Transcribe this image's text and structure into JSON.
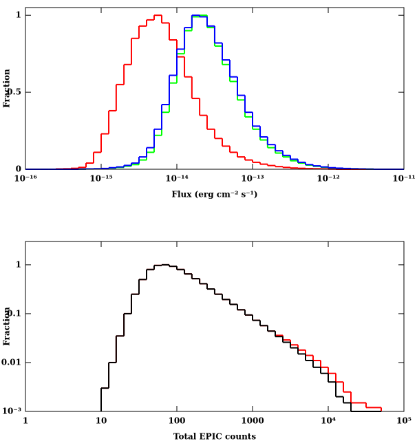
{
  "chart_data": [
    {
      "type": "histogram",
      "xlog": true,
      "ylog": false,
      "xlabel": "Flux (erg cm⁻² s⁻¹)",
      "ylabel": "Fraction",
      "xlim": [
        1e-16,
        1e-11
      ],
      "ylim": [
        0,
        1.05
      ],
      "xticks": [
        {
          "value": 1e-16,
          "label": "10⁻¹⁶"
        },
        {
          "value": 1e-15,
          "label": "10⁻¹⁵"
        },
        {
          "value": 1e-14,
          "label": "10⁻¹⁴"
        },
        {
          "value": 1e-13,
          "label": "10⁻¹³"
        },
        {
          "value": 1e-12,
          "label": "10⁻¹²"
        },
        {
          "value": 1e-11,
          "label": "10⁻¹¹"
        }
      ],
      "yticks": [
        0,
        0.5,
        1
      ],
      "bins": [
        1e-16,
        1.26e-16,
        1.58e-16,
        2e-16,
        2.51e-16,
        3.16e-16,
        3.98e-16,
        5.01e-16,
        6.31e-16,
        7.94e-16,
        1e-15,
        1.26e-15,
        1.58e-15,
        2e-15,
        2.51e-15,
        3.16e-15,
        3.98e-15,
        5.01e-15,
        6.31e-15,
        7.94e-15,
        1e-14,
        1.26e-14,
        1.58e-14,
        2e-14,
        2.51e-14,
        3.16e-14,
        3.98e-14,
        5.01e-14,
        6.31e-14,
        7.94e-14,
        1e-13,
        1.26e-13,
        1.58e-13,
        2e-13,
        2.51e-13,
        3.16e-13,
        3.98e-13,
        5.01e-13,
        6.31e-13,
        7.94e-13,
        1e-12,
        1.26e-12,
        1.58e-12,
        2e-12,
        2.51e-12,
        3.16e-12,
        3.98e-12,
        5.01e-12,
        6.31e-12,
        7.94e-12,
        1e-11
      ],
      "series": [
        {
          "color": "#ff0000",
          "values": [
            0,
            0,
            0,
            0,
            0.002,
            0.003,
            0.006,
            0.012,
            0.04,
            0.11,
            0.23,
            0.38,
            0.55,
            0.68,
            0.85,
            0.93,
            0.97,
            1.0,
            0.95,
            0.84,
            0.73,
            0.6,
            0.46,
            0.35,
            0.26,
            0.2,
            0.15,
            0.11,
            0.08,
            0.06,
            0.045,
            0.033,
            0.024,
            0.017,
            0.012,
            0.008,
            0.006,
            0.004,
            0.003,
            0.002,
            0.001,
            0,
            0,
            0,
            0,
            0,
            0,
            0,
            0,
            0
          ]
        },
        {
          "color": "#00ff00",
          "values": [
            0,
            0,
            0,
            0,
            0,
            0,
            0,
            0.001,
            0.002,
            0.003,
            0.004,
            0.008,
            0.012,
            0.02,
            0.03,
            0.06,
            0.11,
            0.22,
            0.37,
            0.56,
            0.75,
            0.9,
            0.99,
            1.0,
            0.92,
            0.8,
            0.68,
            0.57,
            0.45,
            0.34,
            0.26,
            0.19,
            0.14,
            0.105,
            0.08,
            0.055,
            0.04,
            0.027,
            0.019,
            0.013,
            0.009,
            0.006,
            0.004,
            0.003,
            0.002,
            0.001,
            0,
            0,
            0,
            0
          ]
        },
        {
          "color": "#0000ff",
          "values": [
            0,
            0,
            0,
            0,
            0,
            0,
            0,
            0.001,
            0.002,
            0.003,
            0.005,
            0.01,
            0.015,
            0.025,
            0.04,
            0.08,
            0.14,
            0.26,
            0.42,
            0.61,
            0.78,
            0.92,
            1.0,
            0.99,
            0.93,
            0.82,
            0.71,
            0.6,
            0.48,
            0.37,
            0.28,
            0.21,
            0.16,
            0.12,
            0.09,
            0.065,
            0.045,
            0.03,
            0.022,
            0.015,
            0.01,
            0.007,
            0.005,
            0.003,
            0.002,
            0.001,
            0,
            0,
            0,
            0
          ]
        }
      ]
    },
    {
      "type": "histogram",
      "xlog": true,
      "ylog": true,
      "xlabel": "Total EPIC counts",
      "ylabel": "Fraction",
      "xlim": [
        1,
        100000
      ],
      "ylim": [
        0.001,
        3
      ],
      "xticks": [
        1,
        10,
        100,
        1000,
        {
          "value": 10000,
          "label": "10⁴"
        },
        {
          "value": 100000,
          "label": "10⁵"
        }
      ],
      "yticks": [
        {
          "value": 0.001,
          "label": "10⁻³"
        },
        0.01,
        0.1,
        1
      ],
      "bins": [
        10,
        12.6,
        15.8,
        20,
        25.1,
        31.6,
        39.8,
        50.1,
        63.1,
        79.4,
        100,
        126,
        158,
        200,
        251,
        316,
        398,
        501,
        631,
        794,
        1000,
        1259,
        1585,
        1995,
        2512,
        3162,
        3981,
        5012,
        6310,
        7943,
        10000,
        12589,
        15849,
        19953,
        25119,
        31623,
        39811,
        50119
      ],
      "series": [
        {
          "color": "#ff0000",
          "values": [
            0.003,
            0.01,
            0.035,
            0.1,
            0.25,
            0.5,
            0.8,
            0.97,
            1.0,
            0.93,
            0.8,
            0.65,
            0.52,
            0.41,
            0.32,
            0.25,
            0.195,
            0.155,
            0.12,
            0.094,
            0.073,
            0.057,
            0.044,
            0.036,
            0.029,
            0.023,
            0.018,
            0.014,
            0.011,
            0.008,
            0.006,
            0.004,
            0.0025,
            0.0015,
            0.0015,
            0.0012,
            0.0012
          ]
        },
        {
          "color": "#000000",
          "values": [
            0.003,
            0.01,
            0.035,
            0.1,
            0.25,
            0.5,
            0.8,
            0.97,
            1.0,
            0.93,
            0.8,
            0.65,
            0.52,
            0.41,
            0.32,
            0.25,
            0.195,
            0.155,
            0.12,
            0.094,
            0.073,
            0.057,
            0.044,
            0.034,
            0.026,
            0.02,
            0.015,
            0.011,
            0.008,
            0.006,
            0.004,
            0.002,
            0.0015,
            0,
            0,
            0,
            0
          ]
        }
      ]
    }
  ]
}
